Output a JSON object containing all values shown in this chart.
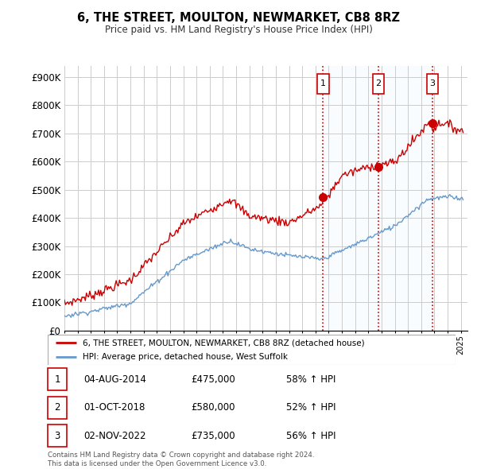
{
  "title": "6, THE STREET, MOULTON, NEWMARKET, CB8 8RZ",
  "subtitle": "Price paid vs. HM Land Registry's House Price Index (HPI)",
  "ylabel_ticks": [
    "£0",
    "£100K",
    "£200K",
    "£300K",
    "£400K",
    "£500K",
    "£600K",
    "£700K",
    "£800K",
    "£900K"
  ],
  "ytick_values": [
    0,
    100000,
    200000,
    300000,
    400000,
    500000,
    600000,
    700000,
    800000,
    900000
  ],
  "ylim": [
    0,
    940000
  ],
  "xlim_start": 1995.0,
  "xlim_end": 2025.5,
  "sale_dates": [
    2014.58,
    2018.75,
    2022.83
  ],
  "sale_prices": [
    475000,
    580000,
    735000
  ],
  "sale_labels": [
    "1",
    "2",
    "3"
  ],
  "vline_color": "#cc0000",
  "shade_color": "#ddeeff",
  "marker_color": "#cc0000",
  "red_line_color": "#cc0000",
  "blue_line_color": "#6699cc",
  "legend_red_label": "6, THE STREET, MOULTON, NEWMARKET, CB8 8RZ (detached house)",
  "legend_blue_label": "HPI: Average price, detached house, West Suffolk",
  "table_rows": [
    [
      "1",
      "04-AUG-2014",
      "£475,000",
      "58% ↑ HPI"
    ],
    [
      "2",
      "01-OCT-2018",
      "£580,000",
      "52% ↑ HPI"
    ],
    [
      "3",
      "02-NOV-2022",
      "£735,000",
      "56% ↑ HPI"
    ]
  ],
  "footer_text": "Contains HM Land Registry data © Crown copyright and database right 2024.\nThis data is licensed under the Open Government Licence v3.0.",
  "background_color": "#ffffff",
  "grid_color": "#cccccc"
}
